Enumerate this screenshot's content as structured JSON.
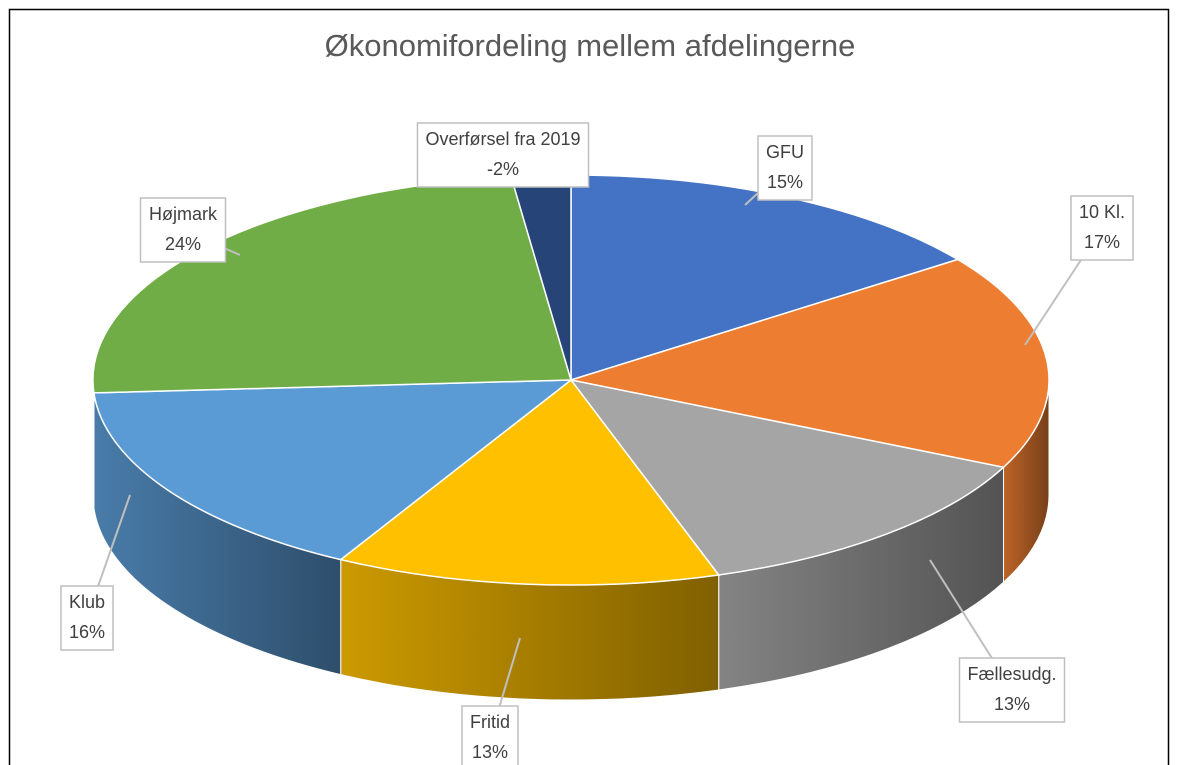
{
  "chart_data": {
    "type": "pie3d",
    "title": "Økonomifordeling mellem afdelingerne",
    "categories": [
      "GFU",
      "10 Kl.",
      "Fællesudg.",
      "Fritid",
      "Klub",
      "Højmark",
      "Overførsel fra 2019"
    ],
    "values": [
      15,
      17,
      13,
      13,
      16,
      24,
      -2
    ],
    "value_labels": [
      "15%",
      "17%",
      "13%",
      "13%",
      "16%",
      "24%",
      "-2%"
    ],
    "colors": [
      "#4472c4",
      "#ed7d31",
      "#a5a5a5",
      "#ffc000",
      "#5b9bd5",
      "#70ad47",
      "#264478"
    ]
  }
}
